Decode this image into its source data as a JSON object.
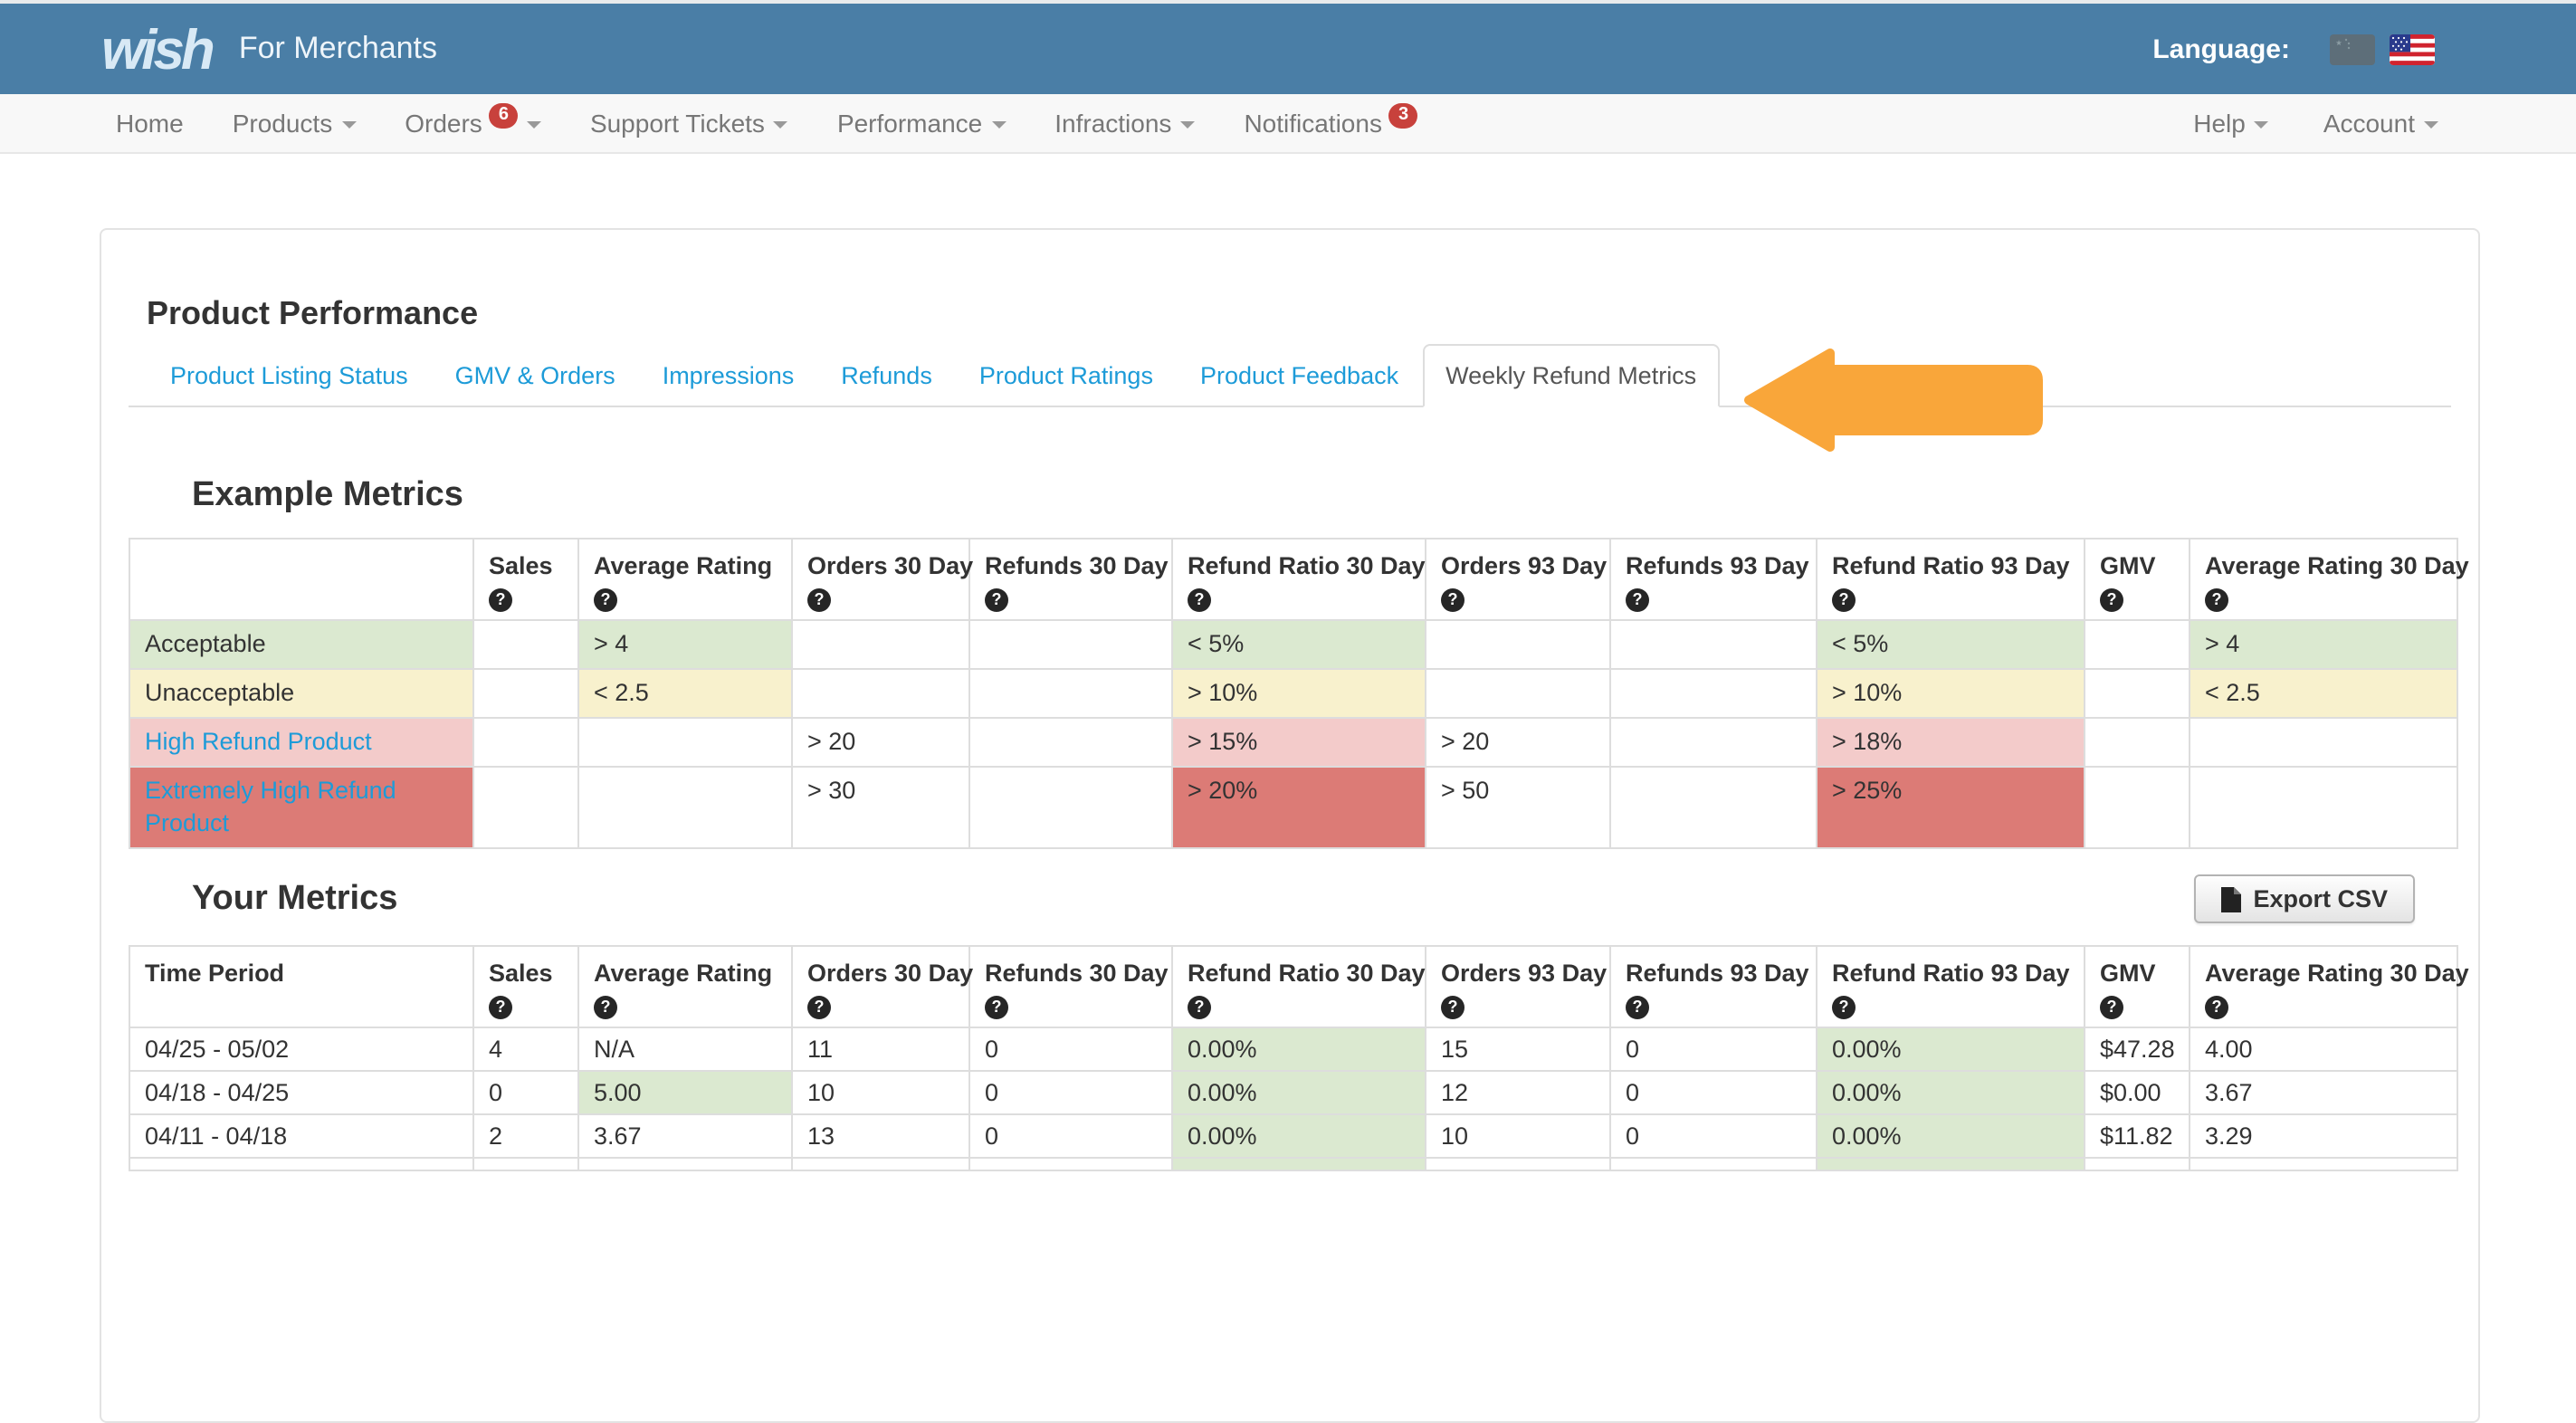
{
  "navbar": {
    "brand": "wish",
    "brand_suffix": "For Merchants",
    "language_label": "Language:",
    "flags": [
      "china-flag",
      "us-flag"
    ]
  },
  "menu": {
    "left_items": [
      {
        "label": "Home",
        "caret": false
      },
      {
        "label": "Products",
        "caret": true
      },
      {
        "label": "Orders",
        "badge": "6",
        "caret": true
      },
      {
        "label": "Support Tickets",
        "caret": true
      },
      {
        "label": "Performance",
        "caret": true
      },
      {
        "label": "Infractions",
        "caret": true
      },
      {
        "label": "Notifications",
        "badge": "3",
        "caret": false
      }
    ],
    "right_items": [
      {
        "label": "Help",
        "caret": true
      },
      {
        "label": "Account",
        "caret": true
      }
    ]
  },
  "page": {
    "title": "Product Performance"
  },
  "tabs": [
    {
      "label": "Product Listing Status",
      "active": false
    },
    {
      "label": "GMV & Orders",
      "active": false
    },
    {
      "label": "Impressions",
      "active": false
    },
    {
      "label": "Refunds",
      "active": false
    },
    {
      "label": "Product Ratings",
      "active": false
    },
    {
      "label": "Product Feedback",
      "active": false
    },
    {
      "label": "Weekly Refund Metrics",
      "active": true
    }
  ],
  "annotation": {
    "shape": "left-arrow",
    "color": "#f9a63a"
  },
  "help_icon_glyph": "?",
  "example_metrics": {
    "title": "Example Metrics",
    "columns": [
      {
        "label": "",
        "help": false
      },
      {
        "label": "Sales",
        "help": true
      },
      {
        "label": "Average Rating",
        "help": true
      },
      {
        "label": "Orders 30 Day",
        "help": true
      },
      {
        "label": "Refunds 30 Day",
        "help": true
      },
      {
        "label": "Refund Ratio 30 Day",
        "help": true
      },
      {
        "label": "Orders 93 Day",
        "help": true
      },
      {
        "label": "Refunds 93 Day",
        "help": true
      },
      {
        "label": "Refund Ratio 93 Day",
        "help": true
      },
      {
        "label": "GMV",
        "help": true
      },
      {
        "label": "Average Rating 30 Day",
        "help": true
      }
    ],
    "rows": [
      {
        "cells": [
          {
            "v": "Acceptable",
            "c": "green"
          },
          {},
          {
            "v": "> 4",
            "c": "green"
          },
          {},
          {},
          {
            "v": "< 5%",
            "c": "green"
          },
          {},
          {},
          {
            "v": "< 5%",
            "c": "green"
          },
          {},
          {
            "v": "> 4",
            "c": "green"
          }
        ]
      },
      {
        "cells": [
          {
            "v": "Unacceptable",
            "c": "yellow"
          },
          {},
          {
            "v": "< 2.5",
            "c": "yellow"
          },
          {},
          {},
          {
            "v": "> 10%",
            "c": "yellow"
          },
          {},
          {},
          {
            "v": "> 10%",
            "c": "yellow"
          },
          {},
          {
            "v": "< 2.5",
            "c": "yellow"
          }
        ]
      },
      {
        "cells": [
          {
            "v": "High Refund Product",
            "c": "pink",
            "link": true
          },
          {},
          {},
          {
            "v": "> 20"
          },
          {},
          {
            "v": "> 15%",
            "c": "pink"
          },
          {
            "v": "> 20"
          },
          {},
          {
            "v": "> 18%",
            "c": "pink"
          },
          {},
          {}
        ]
      },
      {
        "cells": [
          {
            "v": "Extremely High Refund Product",
            "c": "red",
            "link": true
          },
          {},
          {},
          {
            "v": "> 30"
          },
          {},
          {
            "v": "> 20%",
            "c": "red"
          },
          {
            "v": "> 50"
          },
          {},
          {
            "v": "> 25%",
            "c": "red"
          },
          {},
          {}
        ]
      }
    ]
  },
  "your_metrics": {
    "title": "Your Metrics",
    "export_label": "Export CSV",
    "columns": [
      {
        "label": "Time Period",
        "help": false
      },
      {
        "label": "Sales",
        "help": true
      },
      {
        "label": "Average Rating",
        "help": true
      },
      {
        "label": "Orders 30 Day",
        "help": true
      },
      {
        "label": "Refunds 30 Day",
        "help": true
      },
      {
        "label": "Refund Ratio 30 Day",
        "help": true
      },
      {
        "label": "Orders 93 Day",
        "help": true
      },
      {
        "label": "Refunds 93 Day",
        "help": true
      },
      {
        "label": "Refund Ratio 93 Day",
        "help": true
      },
      {
        "label": "GMV",
        "help": true
      },
      {
        "label": "Average Rating 30 Day",
        "help": true
      }
    ],
    "rows": [
      {
        "cells": [
          {
            "v": "04/25 - 05/02"
          },
          {
            "v": "4"
          },
          {
            "v": "N/A"
          },
          {
            "v": "11"
          },
          {
            "v": "0"
          },
          {
            "v": "0.00%",
            "c": "green"
          },
          {
            "v": "15"
          },
          {
            "v": "0"
          },
          {
            "v": "0.00%",
            "c": "green"
          },
          {
            "v": "$47.28"
          },
          {
            "v": "4.00"
          }
        ]
      },
      {
        "cells": [
          {
            "v": "04/18 - 04/25"
          },
          {
            "v": "0"
          },
          {
            "v": "5.00",
            "c": "green"
          },
          {
            "v": "10"
          },
          {
            "v": "0"
          },
          {
            "v": "0.00%",
            "c": "green"
          },
          {
            "v": "12"
          },
          {
            "v": "0"
          },
          {
            "v": "0.00%",
            "c": "green"
          },
          {
            "v": "$0.00"
          },
          {
            "v": "3.67"
          }
        ]
      },
      {
        "cells": [
          {
            "v": "04/11 - 04/18"
          },
          {
            "v": "2"
          },
          {
            "v": "3.67"
          },
          {
            "v": "13"
          },
          {
            "v": "0"
          },
          {
            "v": "0.00%",
            "c": "green"
          },
          {
            "v": "10"
          },
          {
            "v": "0"
          },
          {
            "v": "0.00%",
            "c": "green"
          },
          {
            "v": "$11.82"
          },
          {
            "v": "3.29"
          }
        ]
      },
      {
        "partial": true,
        "cells": [
          {},
          {},
          {},
          {},
          {},
          {
            "c": "green"
          },
          {},
          {},
          {
            "c": "green"
          },
          {},
          {}
        ]
      }
    ]
  },
  "colors": {
    "navbar_blue": "#4a7ea6",
    "accent_blue": "#1d9bd8",
    "arrow_orange": "#f9a63a",
    "badge_red": "#c8413c",
    "cell_green": "#dbe9d0",
    "cell_yellow": "#f8f1cd",
    "cell_pink": "#f3cbca",
    "cell_red": "#dc7b76"
  }
}
